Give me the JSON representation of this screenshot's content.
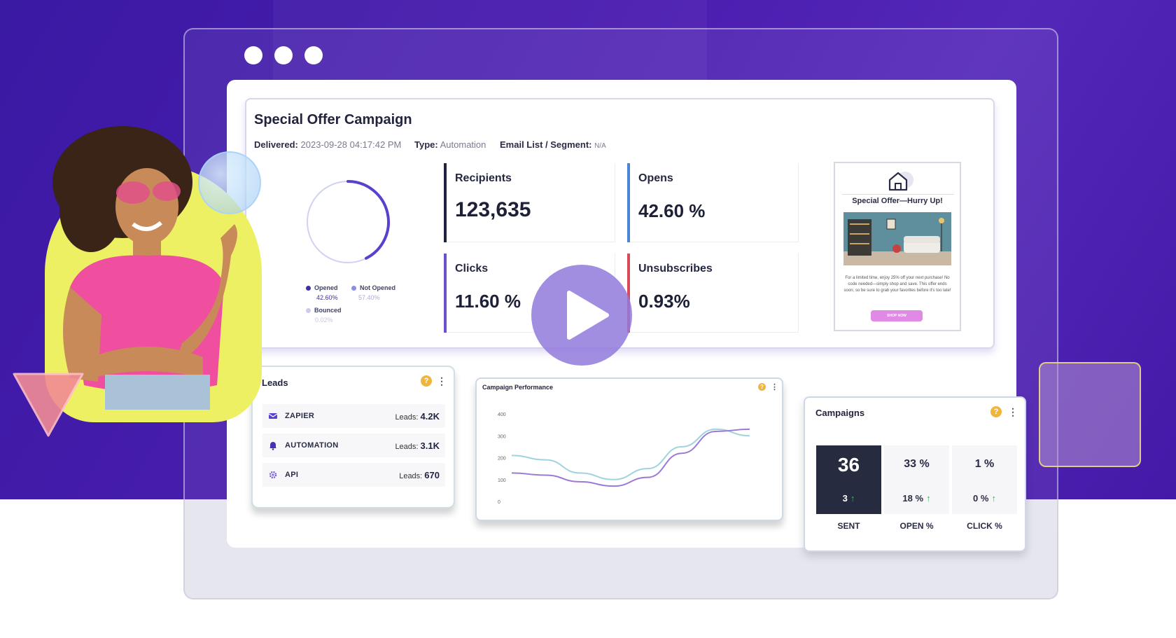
{
  "campaign": {
    "title": "Special Offer Campaign",
    "delivered_label": "Delivered:",
    "delivered_value": "2023-09-28 04:17:42 PM",
    "type_label": "Type:",
    "type_value": "Automation",
    "segment_label": "Email List / Segment:",
    "segment_value": "N/A",
    "donut": {
      "opened_label": "Opened",
      "opened_value": "42.60%",
      "not_opened_label": "Not Opened",
      "not_opened_value": "57.40%",
      "bounced_label": "Bounced",
      "bounced_value": "0.02%",
      "opened_fraction": 0.426
    },
    "stats": [
      {
        "label": "Recipients",
        "value": "123,635",
        "color": "#1f2240"
      },
      {
        "label": "Opens",
        "value": "42.60 %",
        "color": "#4a86d6"
      },
      {
        "label": "Clicks",
        "value": "11.60 %",
        "color": "#6b4fcf"
      },
      {
        "label": "Unsubscribes",
        "value": "0.93%",
        "color": "#d64a5a"
      }
    ],
    "email_preview": {
      "title": "Special Offer—Hurry Up!",
      "body": "For a limited time, enjoy 25% off your next purchase! No code needed—simply shop and save. This offer ends soon, so be sure to grab your favorites before it's too late!",
      "button": "SHOP NOW"
    }
  },
  "leads": {
    "title": "Leads",
    "help": "?",
    "menu": "⋮",
    "rows": [
      {
        "name": "ZAPIER",
        "prefix": "Leads:",
        "value": "4.2K"
      },
      {
        "name": "AUTOMATION",
        "prefix": "Leads:",
        "value": "3.1K"
      },
      {
        "name": "API",
        "prefix": "Leads:",
        "value": "670"
      }
    ]
  },
  "performance": {
    "title": "Campaign Performance",
    "help": "?",
    "menu": "⋮",
    "y_ticks": [
      "400",
      "300",
      "200",
      "100",
      "0"
    ]
  },
  "chart_data": {
    "type": "line",
    "title": "Campaign Performance",
    "ylim": [
      0,
      400
    ],
    "y_ticks": [
      0,
      100,
      200,
      300,
      400
    ],
    "series": [
      {
        "values": [
          210,
          190,
          130,
          100,
          150,
          250,
          330,
          300
        ]
      },
      {
        "values": [
          130,
          120,
          90,
          70,
          110,
          220,
          320,
          330
        ]
      }
    ],
    "colors": [
      "#9fd3dd",
      "#9b7ad6"
    ],
    "grid": false
  },
  "campaigns": {
    "title": "Campaigns",
    "help": "?",
    "menu": "⋮",
    "kpis": [
      {
        "main": "36",
        "sub": "3",
        "label": "SENT",
        "highlight": true
      },
      {
        "main": "33 %",
        "sub": "18 %",
        "label": "OPEN %",
        "highlight": false
      },
      {
        "main": "1 %",
        "sub": "0 %",
        "label": "CLICK %",
        "highlight": false
      }
    ],
    "up_arrow": "↑"
  },
  "colors": {
    "hero_bg": "#4519a8",
    "accent": "#5b3fd1",
    "dark_tile": "#262b40"
  }
}
